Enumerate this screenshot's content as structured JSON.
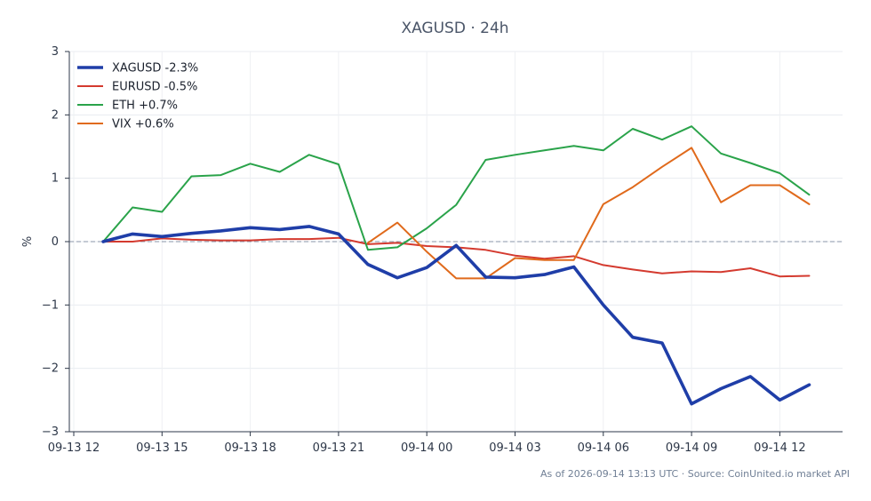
{
  "chart_data": {
    "type": "line",
    "title": "XAGUSD · 24h",
    "xlabel": "",
    "ylabel": "%",
    "ylim": [
      -3,
      3
    ],
    "yticks": [
      3,
      2,
      1,
      0,
      -1,
      -2,
      -3
    ],
    "ytick_labels": [
      "3",
      "2",
      "1",
      "0",
      "−1",
      "−2",
      "−3"
    ],
    "xticks": [
      "09-13 12",
      "09-13 15",
      "09-13 18",
      "09-13 21",
      "09-14 00",
      "09-14 03",
      "09-14 06",
      "09-14 09",
      "09-14 12"
    ],
    "x_hours_from_first_tick": [
      1,
      2,
      3,
      4,
      5,
      6,
      7,
      8,
      9,
      10,
      11,
      12,
      13,
      14,
      15,
      16,
      17,
      18,
      19,
      20,
      21,
      22,
      23,
      24,
      25
    ],
    "grid": true,
    "zero_line": true,
    "legend_position": "top-left",
    "series": [
      {
        "name": "XAGUSD -2.3%",
        "color": "#1f3ea8",
        "values": [
          0.0,
          0.12,
          0.08,
          0.13,
          0.17,
          0.22,
          0.19,
          0.24,
          0.12,
          -0.36,
          -0.57,
          -0.41,
          -0.06,
          -0.56,
          -0.57,
          -0.52,
          -0.4,
          -1.0,
          -1.51,
          -1.6,
          -2.56,
          -2.32,
          -2.13,
          -2.5,
          -2.26
        ]
      },
      {
        "name": "EURUSD -0.5%",
        "color": "#d43a2f",
        "values": [
          0.0,
          0.0,
          0.05,
          0.03,
          0.02,
          0.02,
          0.04,
          0.04,
          0.06,
          -0.04,
          -0.02,
          -0.07,
          -0.09,
          -0.13,
          -0.22,
          -0.27,
          -0.23,
          -0.37,
          -0.44,
          -0.5,
          -0.47,
          -0.48,
          -0.42,
          -0.55,
          -0.54
        ]
      },
      {
        "name": "ETH +0.7%",
        "color": "#2aa34a",
        "values": [
          0.0,
          0.54,
          0.47,
          1.03,
          1.05,
          1.23,
          1.1,
          1.37,
          1.22,
          -0.13,
          -0.09,
          0.21,
          0.58,
          1.29,
          1.37,
          1.44,
          1.51,
          1.44,
          1.78,
          1.61,
          1.82,
          1.39,
          1.24,
          1.08,
          0.74
        ]
      },
      {
        "name": "VIX +0.6%",
        "color": "#e06a1c",
        "values": [
          null,
          null,
          null,
          null,
          null,
          null,
          null,
          null,
          null,
          -0.02,
          0.3,
          -0.16,
          -0.58,
          -0.58,
          -0.26,
          -0.29,
          -0.29,
          0.59,
          0.86,
          1.18,
          1.48,
          0.62,
          0.89,
          0.89,
          0.59
        ]
      }
    ]
  },
  "footer": "As of 2026-09-14 13:13 UTC · Source: CoinUnited.io market API"
}
